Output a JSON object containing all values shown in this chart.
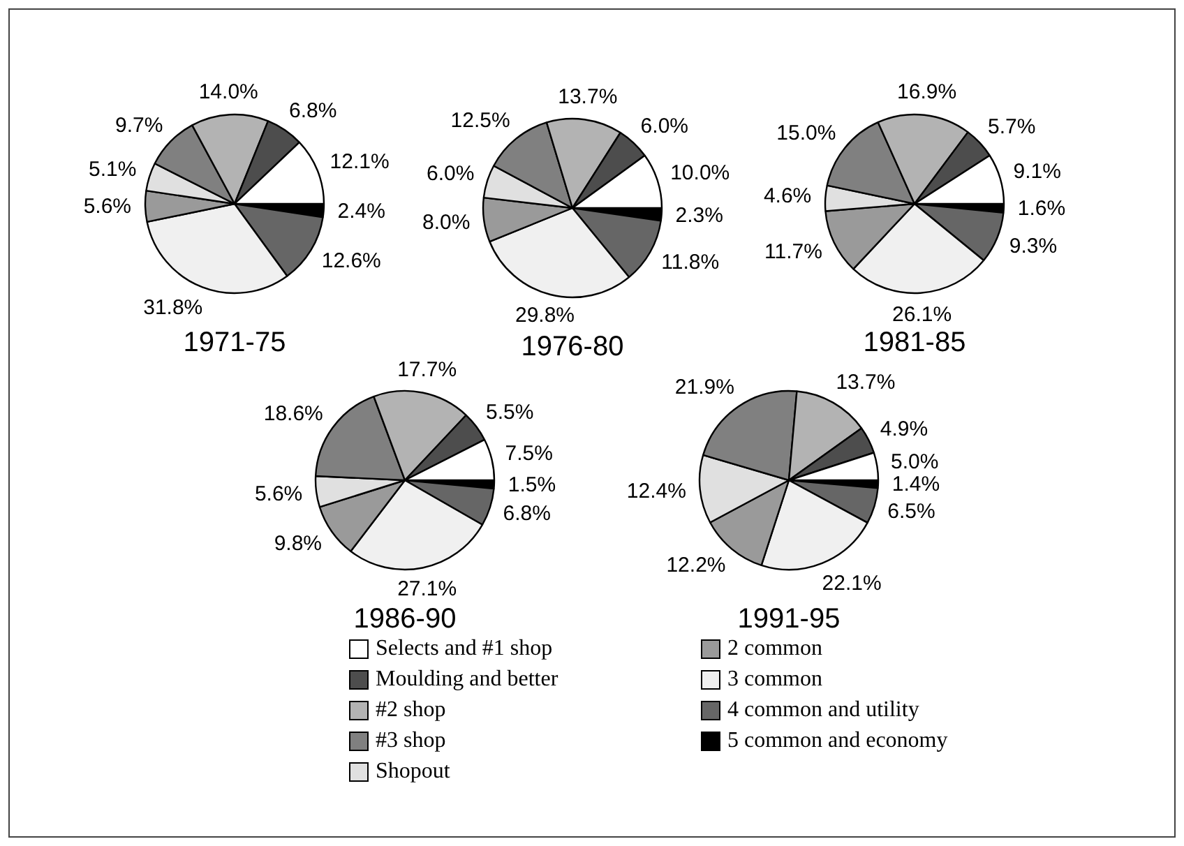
{
  "chart_data": [
    {
      "type": "pie",
      "title": "1971-75",
      "categories": [
        "Selects and #1 shop",
        "Moulding and better",
        "#2 shop",
        "#3 shop",
        "Shopout",
        "2 common",
        "3 common",
        "4 common and utility",
        "5 common and economy"
      ],
      "values": [
        12.1,
        6.8,
        14.0,
        9.7,
        5.1,
        5.6,
        31.8,
        12.6,
        2.4
      ],
      "value_labels": [
        "12.1%",
        "6.8%",
        "14.0%",
        "9.7%",
        "5.1%",
        "5.6%",
        "31.8%",
        "12.6%",
        "2.4%"
      ],
      "colors": [
        "#ffffff",
        "#4d4d4d",
        "#b3b3b3",
        "#808080",
        "#e0e0e0",
        "#9a9a9a",
        "#f0f0f0",
        "#666666",
        "#000000"
      ],
      "legend": "bottom"
    },
    {
      "type": "pie",
      "title": "1976-80",
      "categories": [
        null,
        null,
        null,
        null,
        null,
        null,
        null,
        null,
        null
      ],
      "values": [
        10.0,
        6.0,
        13.7,
        12.5,
        6.0,
        8.0,
        29.8,
        11.8,
        2.3
      ],
      "value_labels": [
        "10.0%",
        "6.0%",
        "13.7%",
        "12.5%",
        "6.0%",
        "8.0%",
        "29.8%",
        "11.8%",
        "2.3%"
      ],
      "colors": [
        "#ffffff",
        "#4d4d4d",
        "#b3b3b3",
        "#808080",
        "#e0e0e0",
        "#9a9a9a",
        "#f0f0f0",
        "#666666",
        "#000000"
      ]
    },
    {
      "type": "pie",
      "title": "1981-85",
      "categories": [
        null,
        null,
        null,
        null,
        null,
        null,
        null,
        null,
        null
      ],
      "values": [
        9.1,
        5.7,
        16.9,
        15.0,
        4.6,
        11.7,
        26.1,
        9.3,
        1.6
      ],
      "value_labels": [
        "9.1%",
        "5.7%",
        "16.9%",
        "15.0%",
        "4.6%",
        "11.7%",
        "26.1%",
        "9.3%",
        "1.6%"
      ],
      "colors": [
        "#ffffff",
        "#4d4d4d",
        "#b3b3b3",
        "#808080",
        "#e0e0e0",
        "#9a9a9a",
        "#f0f0f0",
        "#666666",
        "#000000"
      ]
    },
    {
      "type": "pie",
      "title": "1986-90",
      "categories": [
        null,
        null,
        null,
        null,
        null,
        null,
        null,
        null,
        null
      ],
      "values": [
        7.5,
        5.5,
        17.7,
        18.6,
        5.6,
        9.8,
        27.1,
        6.8,
        1.5
      ],
      "value_labels": [
        "7.5%",
        "5.5%",
        "17.7%",
        "18.6%",
        "5.6%",
        "9.8%",
        "27.1%",
        "6.8%",
        "1.5%"
      ],
      "colors": [
        "#ffffff",
        "#4d4d4d",
        "#b3b3b3",
        "#808080",
        "#e0e0e0",
        "#9a9a9a",
        "#f0f0f0",
        "#666666",
        "#000000"
      ]
    },
    {
      "type": "pie",
      "title": "1991-95",
      "categories": [
        null,
        null,
        null,
        null,
        null,
        null,
        null,
        null,
        null
      ],
      "values": [
        5.0,
        4.9,
        13.7,
        21.9,
        12.4,
        12.2,
        22.1,
        6.5,
        1.4
      ],
      "value_labels": [
        "5.0%",
        "4.9%",
        "13.7%",
        "21.9%",
        "12.4%",
        "12.2%",
        "22.1%",
        "6.5%",
        "1.4%"
      ],
      "colors": [
        "#ffffff",
        "#4d4d4d",
        "#b3b3b3",
        "#808080",
        "#e0e0e0",
        "#9a9a9a",
        "#f0f0f0",
        "#666666",
        "#000000"
      ]
    }
  ]
}
